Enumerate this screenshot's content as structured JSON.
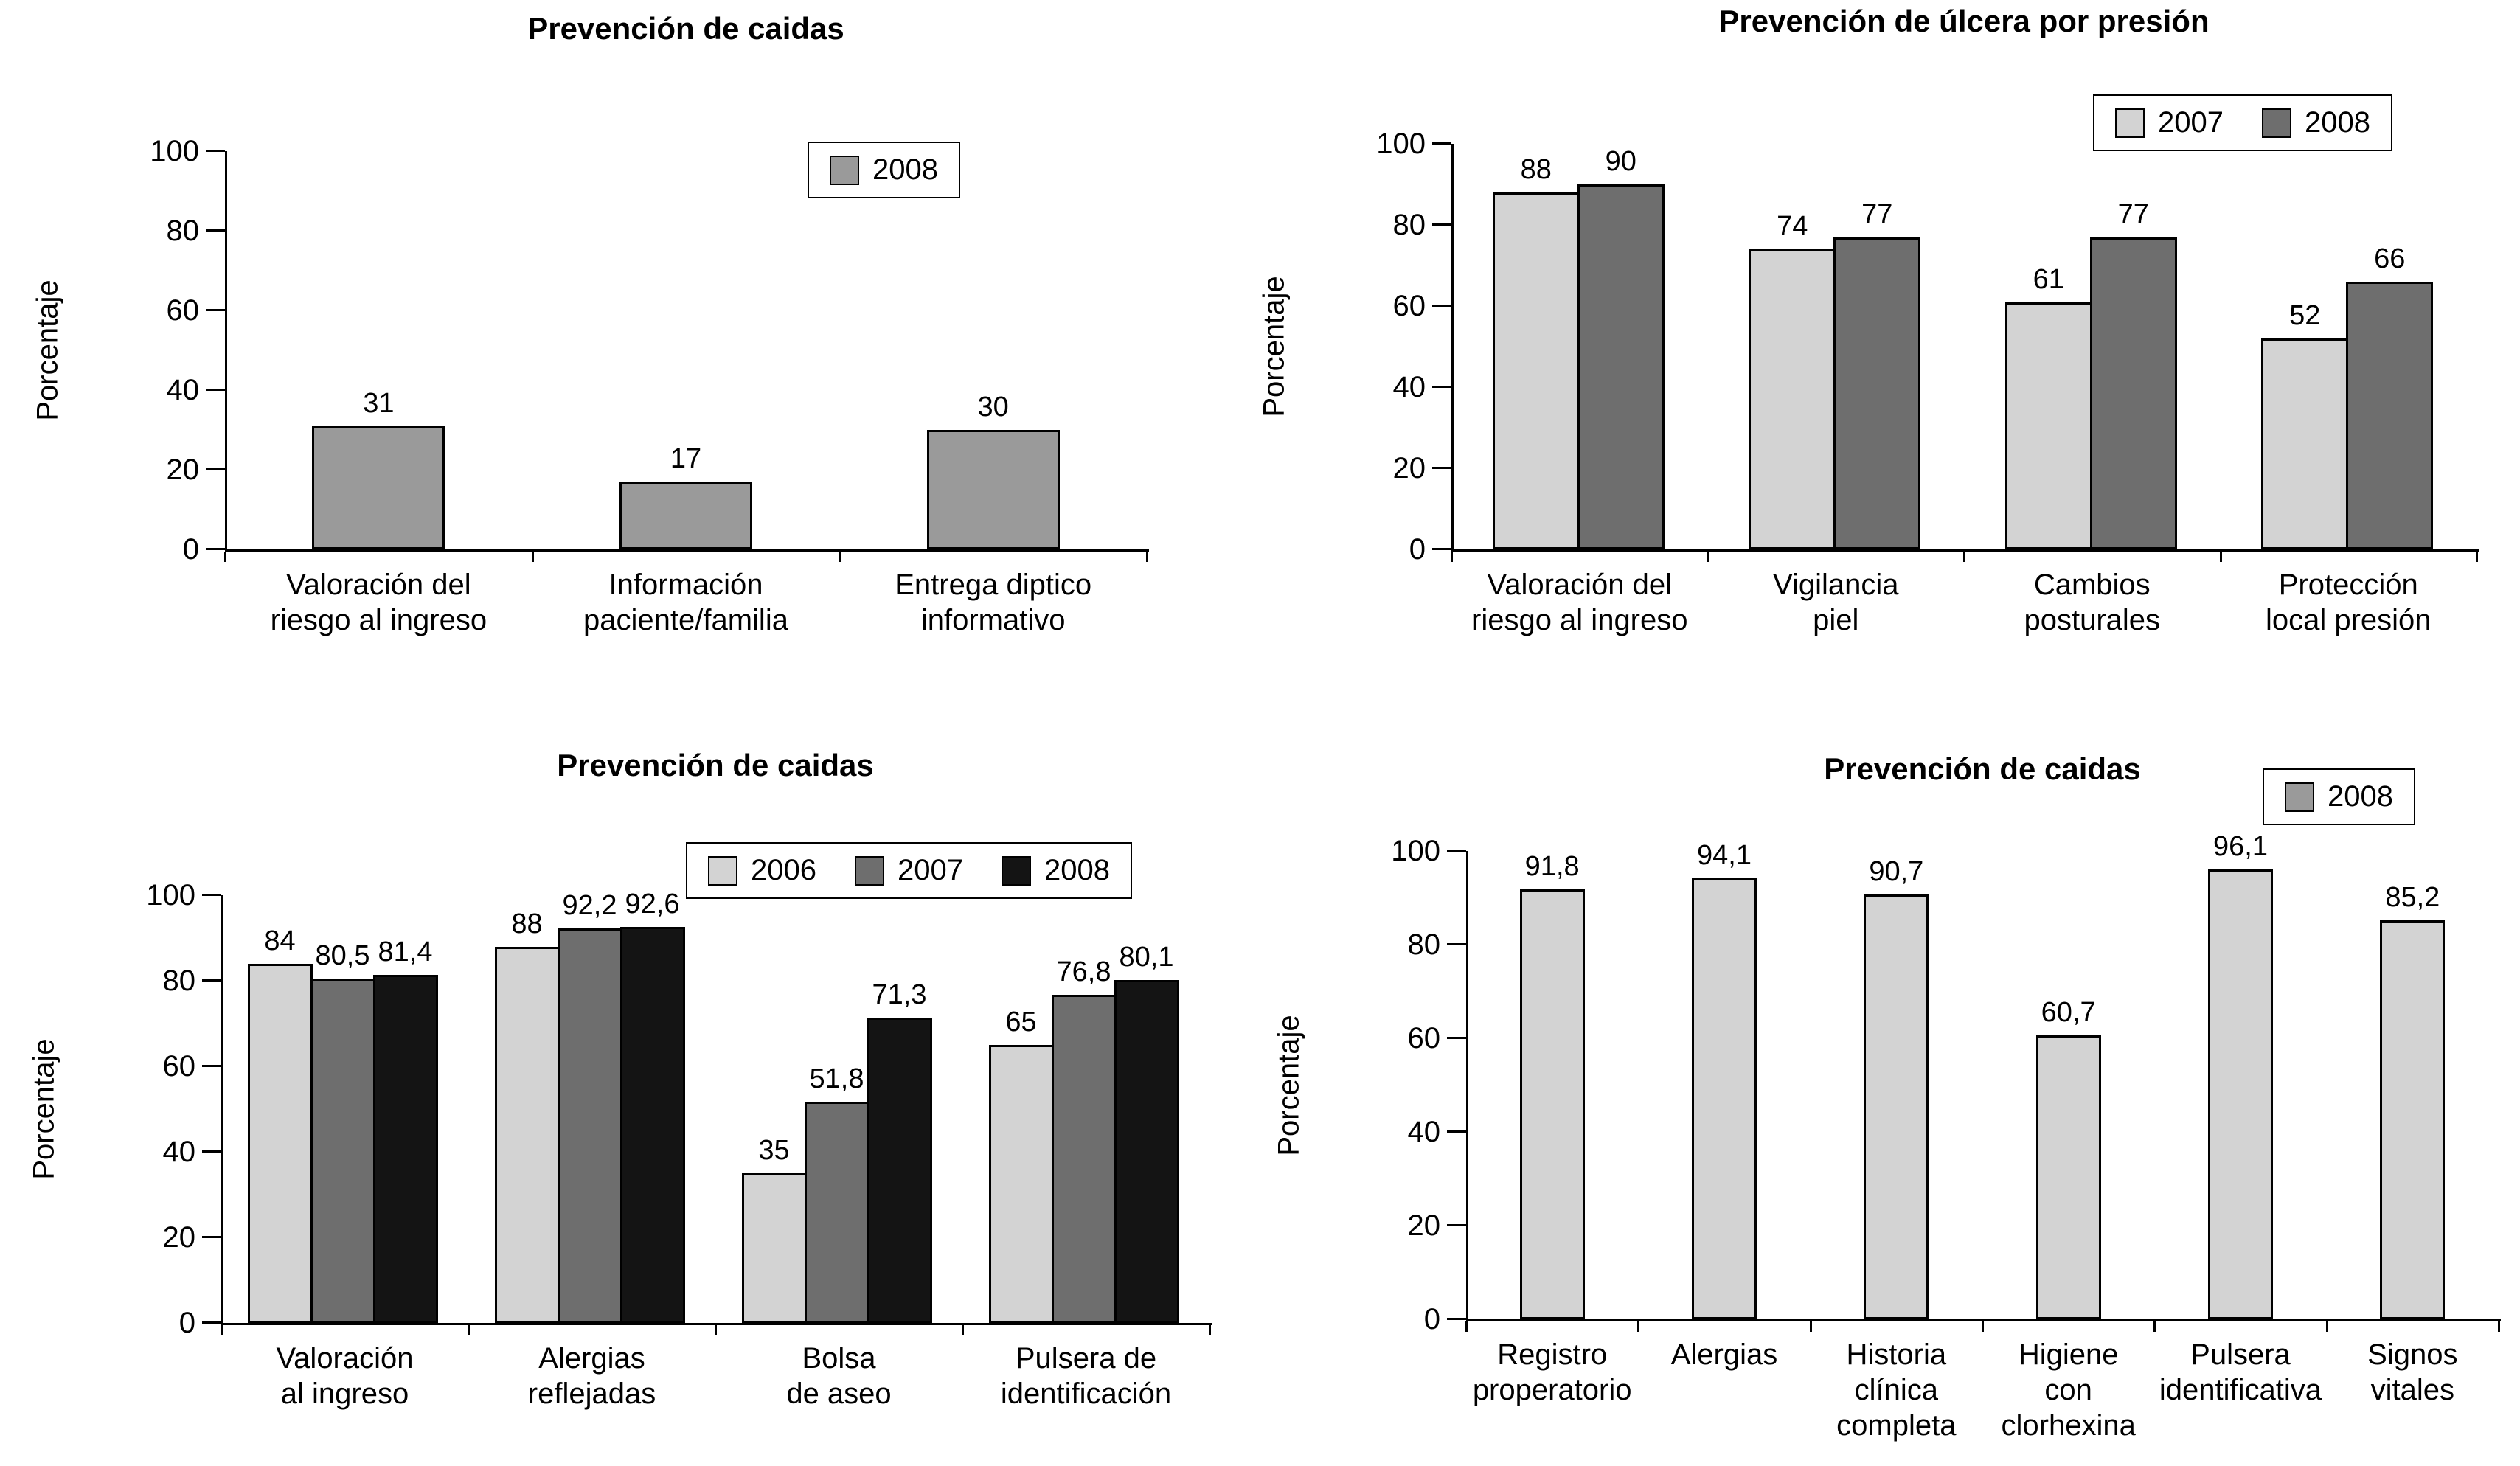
{
  "figure": {
    "background": "#ffffff",
    "text_color": "#000000"
  },
  "chart_data": [
    {
      "type": "bar",
      "title": "Prevención de caidas",
      "ylabel": "Porcentaje",
      "ylim": [
        0,
        100
      ],
      "yticks": [
        0,
        20,
        40,
        60,
        80,
        100
      ],
      "grid": false,
      "legend_position": "top-right-inside",
      "categories": [
        [
          "Valoración del",
          "riesgo al ingreso"
        ],
        [
          "Información",
          "paciente/familia"
        ],
        [
          "Entrega diptico",
          "informativo"
        ]
      ],
      "series": [
        {
          "name": "2008",
          "color": "#9a9a9a",
          "values": [
            31,
            17,
            30
          ],
          "labels": [
            "31",
            "17",
            "30"
          ]
        }
      ]
    },
    {
      "type": "bar",
      "title": "Prevención de úlcera por presión",
      "ylabel": "Porcentaje",
      "ylim": [
        0,
        100
      ],
      "yticks": [
        0,
        20,
        40,
        60,
        80,
        100
      ],
      "grid": false,
      "legend_position": "top-right",
      "categories": [
        [
          "Valoración del",
          "riesgo al ingreso"
        ],
        [
          "Vigilancia",
          "piel"
        ],
        [
          "Cambios",
          "posturales"
        ],
        [
          "Protección",
          "local presión"
        ]
      ],
      "series": [
        {
          "name": "2007",
          "color": "#d3d3d3",
          "values": [
            88,
            74,
            61,
            52
          ],
          "labels": [
            "88",
            "74",
            "61",
            "52"
          ]
        },
        {
          "name": "2008",
          "color": "#6e6e6e",
          "values": [
            90,
            77,
            77,
            66
          ],
          "labels": [
            "90",
            "77",
            "77",
            "66"
          ]
        }
      ]
    },
    {
      "type": "bar",
      "title": "Prevención de caidas",
      "ylabel": "Porcentaje",
      "ylim": [
        0,
        100
      ],
      "yticks": [
        0,
        20,
        40,
        60,
        80,
        100
      ],
      "grid": false,
      "legend_position": "top-right",
      "categories": [
        [
          "Valoración",
          "al ingreso"
        ],
        [
          "Alergias",
          "reflejadas"
        ],
        [
          "Bolsa",
          "de aseo"
        ],
        [
          "Pulsera de",
          "identificación"
        ]
      ],
      "series": [
        {
          "name": "2006",
          "color": "#d3d3d3",
          "values": [
            84,
            88,
            35,
            65
          ],
          "labels": [
            "84",
            "88",
            "35",
            "65"
          ]
        },
        {
          "name": "2007",
          "color": "#6e6e6e",
          "values": [
            80.5,
            92.2,
            51.8,
            76.8
          ],
          "labels": [
            "80,5",
            "92,2",
            "51,8",
            "76,8"
          ]
        },
        {
          "name": "2008",
          "color": "#141414",
          "values": [
            81.4,
            92.6,
            71.3,
            80.1
          ],
          "labels": [
            "81,4",
            "92,6",
            "71,3",
            "80,1"
          ]
        }
      ]
    },
    {
      "type": "bar",
      "title": "Prevención de caidas",
      "ylabel": "Porcentaje",
      "ylim": [
        0,
        100
      ],
      "yticks": [
        0,
        20,
        40,
        60,
        80,
        100
      ],
      "grid": false,
      "legend_position": "top-right-outside",
      "categories": [
        [
          "Registro",
          "properatorio"
        ],
        [
          "Alergias"
        ],
        [
          "Historia",
          "clínica",
          "completa"
        ],
        [
          "Higiene",
          "con",
          "clorhexina"
        ],
        [
          "Pulsera",
          "identificativa"
        ],
        [
          "Signos",
          "vitales"
        ]
      ],
      "series": [
        {
          "name": "2008",
          "color": "#d3d3d3",
          "legend_color": "#9a9a9a",
          "values": [
            91.8,
            94.1,
            90.7,
            60.7,
            96.1,
            85.2
          ],
          "labels": [
            "91,8",
            "94,1",
            "90,7",
            "60,7",
            "96,1",
            "85,2"
          ]
        }
      ]
    }
  ]
}
